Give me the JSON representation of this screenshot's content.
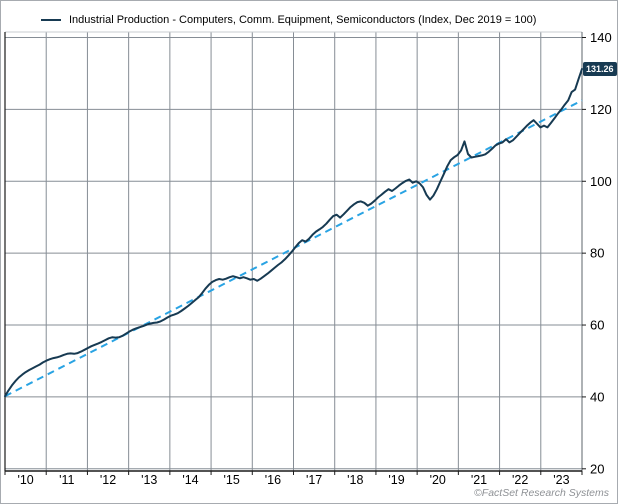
{
  "legend": {
    "label": "Industrial Production - Computers, Comm. Equipment, Semiconductors (Index, Dec 2019 = 100)"
  },
  "last_value_label": "131.26",
  "footer": {
    "credit": "©FactSet Research Systems"
  },
  "colors": {
    "series": "#173a52",
    "trend": "#29a3e3",
    "grid": "#868d95",
    "plot_top_border": "#c9cdd1",
    "axis": "#1a1a1a",
    "right_border": "#5c646b",
    "tick_label": "#000000",
    "label_box_bg": "#173a52",
    "label_box_text": "#ffffff"
  },
  "chart_data": {
    "type": "line",
    "title": "Industrial Production - Computers, Comm. Equipment, Semiconductors (Index, Dec 2019 = 100)",
    "xlabel": "",
    "ylabel": "",
    "ylim": [
      20,
      140
    ],
    "y_ticks": [
      20,
      40,
      60,
      80,
      100,
      120,
      140
    ],
    "y_axis_side": "right",
    "grid": true,
    "legend_position": "top-left",
    "x_monthly_start": "2010-01",
    "x_monthly_end": "2023-12",
    "x_tick_labels": [
      "'10",
      "'11",
      "'12",
      "'13",
      "'14",
      "'15",
      "'16",
      "'17",
      "'18",
      "'19",
      "'20",
      "'21",
      "'22",
      "'23"
    ],
    "last_value": 131.26,
    "series": [
      {
        "name": "Industrial Production - Computers, Comm. Equipment, Semiconductors",
        "style": "solid",
        "monthly_values": [
          40.2,
          41.8,
          43.2,
          44.4,
          45.4,
          46.2,
          46.9,
          47.5,
          48.0,
          48.5,
          49.0,
          49.6,
          50.1,
          50.5,
          50.8,
          51.0,
          51.3,
          51.7,
          52.0,
          52.1,
          52.0,
          52.2,
          52.6,
          53.1,
          53.6,
          54.1,
          54.5,
          54.9,
          55.3,
          55.8,
          56.3,
          56.6,
          56.5,
          56.6,
          57.0,
          57.6,
          58.2,
          58.7,
          59.1,
          59.4,
          59.7,
          60.1,
          60.4,
          60.6,
          60.7,
          61.0,
          61.5,
          62.1,
          62.6,
          62.9,
          63.3,
          63.9,
          64.6,
          65.3,
          66.1,
          66.9,
          67.7,
          68.8,
          70.1,
          71.2,
          72.0,
          72.5,
          72.8,
          72.6,
          72.9,
          73.3,
          73.6,
          73.3,
          73.0,
          73.3,
          73.0,
          72.6,
          72.8,
          72.3,
          72.9,
          73.6,
          74.3,
          75.1,
          75.9,
          76.7,
          77.4,
          78.3,
          79.3,
          80.4,
          81.6,
          82.8,
          83.6,
          83.2,
          84.0,
          85.1,
          86.0,
          86.6,
          87.3,
          88.2,
          89.3,
          90.3,
          90.7,
          89.9,
          90.8,
          91.8,
          92.8,
          93.6,
          94.2,
          94.4,
          94.0,
          93.2,
          93.8,
          94.6,
          95.5,
          96.3,
          97.1,
          97.8,
          97.3,
          98.0,
          98.8,
          99.5,
          100.1,
          100.5,
          99.6,
          100.0,
          99.4,
          98.3,
          96.2,
          94.9,
          96.0,
          97.8,
          99.9,
          102.0,
          104.2,
          105.9,
          106.7,
          107.3,
          108.6,
          111.1,
          107.6,
          106.6,
          106.8,
          107.0,
          107.2,
          107.5,
          108.2,
          109.1,
          110.0,
          110.5,
          110.8,
          111.7,
          110.8,
          111.4,
          112.4,
          113.4,
          114.4,
          115.4,
          116.3,
          117.0,
          116.0,
          115.0,
          115.5,
          115.0,
          116.2,
          117.5,
          118.8,
          120.0,
          121.3,
          122.5,
          124.8,
          125.5,
          128.4,
          131.26
        ]
      },
      {
        "name": "Linear trend",
        "style": "dashed",
        "endpoints": [
          40.2,
          122.5
        ]
      }
    ]
  }
}
